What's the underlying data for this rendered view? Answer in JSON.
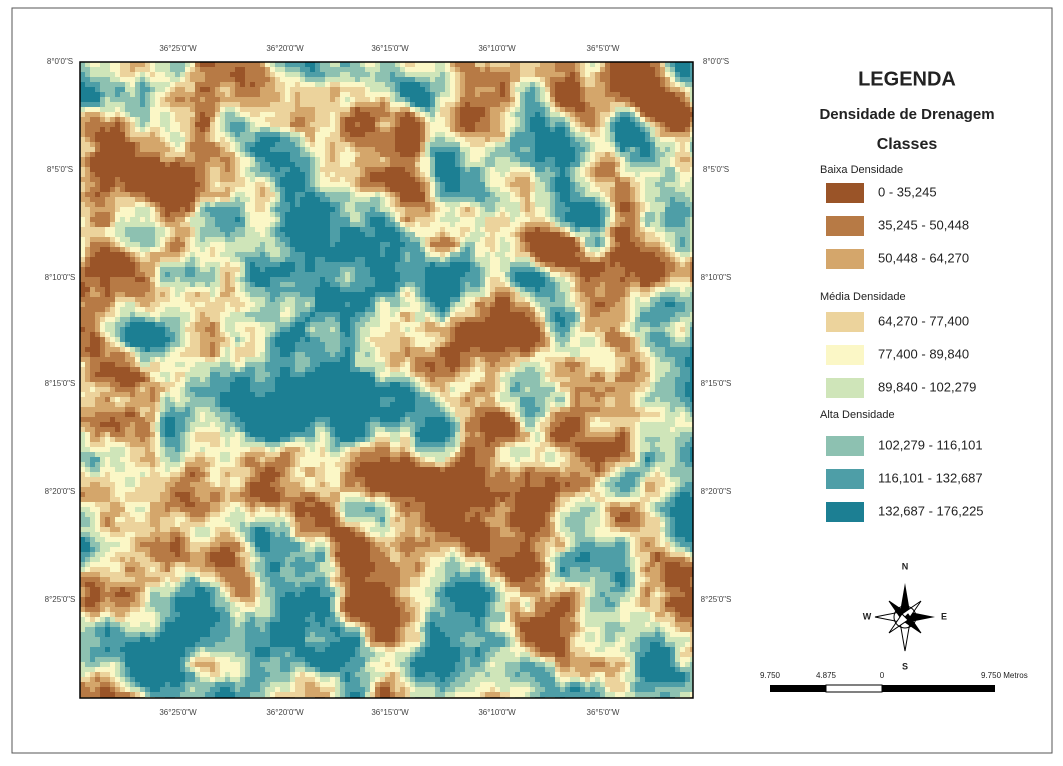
{
  "map": {
    "top_labels": [
      "36°25'0\"W",
      "36°20'0\"W",
      "36°15'0\"W",
      "36°10'0\"W",
      "36°5'0\"W"
    ],
    "bottom_labels": [
      "36°25'0\"W",
      "36°20'0\"W",
      "36°15'0\"W",
      "36°10'0\"W",
      "36°5'0\"W"
    ],
    "left_labels": [
      "8°0'0\"S",
      "8°5'0\"S",
      "8°10'0\"S",
      "8°15'0\"S",
      "8°20'0\"S",
      "8°25'0\"S"
    ],
    "right_labels": [
      "8°0'0\"S",
      "8°5'0\"S",
      "8°10'0\"S",
      "8°15'0\"S",
      "8°20'0\"S",
      "8°25'0\"S"
    ]
  },
  "legend": {
    "title": "LEGENDA",
    "subtitle": "Densidade de Drenagem",
    "heading": "Classes",
    "groups": [
      {
        "name": "Baixa Densidade",
        "classes": [
          {
            "label": "0 - 35,245",
            "color": "#9a5428"
          },
          {
            "label": "35,245 - 50,448",
            "color": "#b77a45"
          },
          {
            "label": "50,448 - 64,270",
            "color": "#d4a66b"
          }
        ]
      },
      {
        "name": "Média Densidade",
        "classes": [
          {
            "label": "64,270 - 77,400",
            "color": "#ecd39c"
          },
          {
            "label": "77,400 - 89,840",
            "color": "#fbf7c6"
          },
          {
            "label": "89,840 - 102,279",
            "color": "#cfe5b9"
          }
        ]
      },
      {
        "name": "Alta Densidade",
        "classes": [
          {
            "label": "102,279 - 116,101",
            "color": "#8dc1b1"
          },
          {
            "label": "116,101 - 132,687",
            "color": "#4e9ea7"
          },
          {
            "label": "132,687 - 176,225",
            "color": "#1c7f93"
          }
        ]
      }
    ]
  },
  "compass": {
    "north": "N",
    "south": "S",
    "west": "W",
    "east": "E"
  },
  "scale_bar": {
    "labels": [
      "9.750",
      "4.875",
      "0",
      "9.750 Metros"
    ]
  }
}
